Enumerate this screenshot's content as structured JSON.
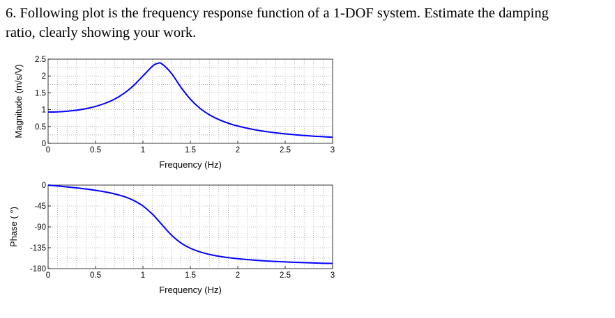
{
  "question": {
    "line1": "6. Following plot is the frequency response function of a 1-DOF system. Estimate the damping",
    "line2": "ratio, clearly showing your work."
  },
  "chart_data": [
    {
      "type": "line",
      "xlabel": "Frequency (Hz)",
      "ylabel": "Magnitude (m/s/V)",
      "xlim": [
        0,
        3
      ],
      "ylim": [
        0,
        2.5
      ],
      "xticks": [
        "0",
        "0.5",
        "1",
        "1.5",
        "2",
        "2.5",
        "3"
      ],
      "yticks": [
        "0",
        "0.5",
        "1",
        "1.5",
        "2",
        "2.5"
      ],
      "grid": true,
      "line_color": "#0000ff",
      "x": [
        0,
        0.1,
        0.2,
        0.3,
        0.4,
        0.5,
        0.6,
        0.7,
        0.8,
        0.9,
        1.0,
        1.1,
        1.15,
        1.2,
        1.3,
        1.4,
        1.5,
        1.6,
        1.7,
        1.8,
        1.9,
        2.0,
        2.2,
        2.4,
        2.6,
        2.8,
        3.0
      ],
      "y": [
        0.93,
        0.936,
        0.954,
        0.985,
        1.031,
        1.097,
        1.188,
        1.311,
        1.483,
        1.713,
        2.0,
        2.29,
        2.37,
        2.36,
        2.08,
        1.667,
        1.31,
        1.044,
        0.85,
        0.706,
        0.598,
        0.514,
        0.393,
        0.312,
        0.255,
        0.213,
        0.181
      ]
    },
    {
      "type": "line",
      "xlabel": "Frequency (Hz)",
      "ylabel": "Phase ( °)",
      "xlim": [
        0,
        3
      ],
      "ylim": [
        -180,
        0
      ],
      "xticks": [
        "0",
        "0.5",
        "1",
        "1.5",
        "2",
        "2.5",
        "3"
      ],
      "yticks": [
        "-180",
        "-135",
        "-90",
        "-45",
        "0"
      ],
      "grid": true,
      "line_color": "#0000ff",
      "x": [
        0,
        0.1,
        0.2,
        0.3,
        0.4,
        0.5,
        0.6,
        0.7,
        0.8,
        0.9,
        1.0,
        1.1,
        1.15,
        1.2,
        1.3,
        1.4,
        1.5,
        1.6,
        1.7,
        1.8,
        1.9,
        2.0,
        2.2,
        2.4,
        2.6,
        2.8,
        3.0
      ],
      "y": [
        0,
        -1.9,
        -3.9,
        -6.0,
        -8.4,
        -11.2,
        -14.6,
        -18.9,
        -24.7,
        -32.9,
        -45,
        -62.6,
        -73.6,
        -85.2,
        -107.7,
        -124.6,
        -136.1,
        -143.9,
        -149.4,
        -153.4,
        -156.4,
        -158.7,
        -162.2,
        -164.7,
        -166.5,
        -167.9,
        -169.0
      ]
    }
  ]
}
